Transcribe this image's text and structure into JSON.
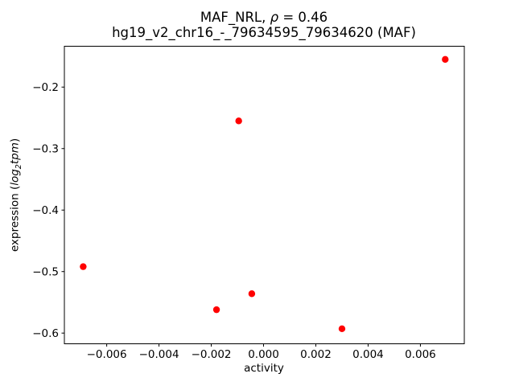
{
  "window": {
    "background": "#ffffff"
  },
  "chart_data": {
    "type": "scatter",
    "title": {
      "line1_prefix": "MAF_NRL, ",
      "line1_rho": "ρ",
      "line1_suffix": " = 0.46",
      "line2": "hg19_v2_chr16_-_79634595_79634620 (MAF)"
    },
    "xlabel": "activity",
    "ylabel": {
      "prefix": "expression (",
      "math_log": "log",
      "math_sub": "2",
      "math_tpm": "tpm",
      "suffix": ")"
    },
    "marker": {
      "shape": "circle",
      "color": "#ff0000",
      "radius_px": 4.2
    },
    "axis_color": "#000000",
    "xlim": [
      -0.00762,
      0.00768
    ],
    "ylim": [
      -0.6174,
      -0.1336
    ],
    "xticks": {
      "values": [
        -0.006,
        -0.004,
        -0.002,
        0.0,
        0.002,
        0.004,
        0.006
      ],
      "labels": [
        "−0.006",
        "−0.004",
        "−0.002",
        "0.000",
        "0.002",
        "0.004",
        "0.006"
      ]
    },
    "yticks": {
      "values": [
        -0.2,
        -0.3,
        -0.4,
        -0.5,
        -0.6
      ],
      "labels": [
        "−0.2",
        "−0.3",
        "−0.4",
        "−0.5",
        "−0.6"
      ]
    },
    "points": [
      {
        "x": 0.00695,
        "y": -0.155
      },
      {
        "x": -0.00095,
        "y": -0.255
      },
      {
        "x": -0.0069,
        "y": -0.492
      },
      {
        "x": -0.00045,
        "y": -0.536
      },
      {
        "x": -0.0018,
        "y": -0.562
      },
      {
        "x": 0.003,
        "y": -0.593
      }
    ],
    "grid": false,
    "legend": null
  }
}
